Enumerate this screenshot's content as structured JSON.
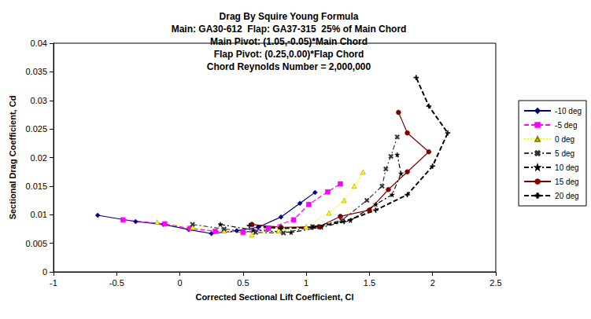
{
  "chart_data": {
    "type": "line",
    "title": "Drag By Squire Young Formula",
    "subtitle": [
      "Main: GA30-612  Flap: GA37-315  25% of Main Chord",
      "Main Pivot: (1.05,-0.05)*Main Chord",
      "Flap Pivot: (0.25,0.00)*Flap Chord",
      "Chord Reynolds Number = 2,000,000"
    ],
    "x_label": "Corrected Sectional Lift Coefficient, Cl",
    "y_label": "Sectional Drag Coefficient, Cd",
    "xlim": [
      -1,
      2.5
    ],
    "xticks": [
      -1,
      -0.5,
      0,
      0.5,
      1,
      1.5,
      2,
      2.5
    ],
    "ylim": [
      0,
      0.04
    ],
    "yticks": [
      0,
      0.005,
      0.01,
      0.015,
      0.02,
      0.025,
      0.03,
      0.035,
      0.04
    ],
    "grid": false,
    "legend": "right",
    "series": [
      {
        "name": "-10 deg",
        "color": "#000080",
        "marker": "diamond",
        "line_style": "solid",
        "x": [
          -0.65,
          -0.35,
          -0.13,
          0.07,
          0.25,
          0.45,
          0.62,
          0.8,
          0.95,
          1.07
        ],
        "values": [
          0.0099,
          0.0088,
          0.0083,
          0.0074,
          0.0067,
          0.0072,
          0.0078,
          0.0096,
          0.012,
          0.0139
        ]
      },
      {
        "name": "-5 deg",
        "color": "#FF00FF",
        "marker": "square",
        "line_style": "dashed",
        "x": [
          -0.45,
          -0.12,
          0.08,
          0.28,
          0.5,
          0.7,
          0.9,
          1.02,
          1.17,
          1.27
        ],
        "values": [
          0.0091,
          0.0084,
          0.0076,
          0.0071,
          0.0069,
          0.0076,
          0.0091,
          0.0118,
          0.014,
          0.0154
        ]
      },
      {
        "name": "0 deg",
        "color": "#FFFF00",
        "marker": "triangle",
        "line_style": "dotted",
        "x": [
          -0.18,
          0.1,
          0.35,
          0.57,
          0.78,
          1.0,
          1.18,
          1.3,
          1.38,
          1.45
        ],
        "values": [
          0.0087,
          0.0078,
          0.0072,
          0.0065,
          0.0072,
          0.0079,
          0.0103,
          0.0125,
          0.015,
          0.0175
        ]
      },
      {
        "name": "5 deg",
        "color": "#333333",
        "marker": "x",
        "line_style": "dashdot",
        "x": [
          0.1,
          0.35,
          0.6,
          0.82,
          1.05,
          1.28,
          1.48,
          1.6,
          1.63,
          1.67,
          1.72
        ],
        "values": [
          0.0083,
          0.0075,
          0.0069,
          0.0068,
          0.0079,
          0.009,
          0.0125,
          0.015,
          0.018,
          0.0202,
          0.0236
        ]
      },
      {
        "name": "10 deg",
        "color": "#000000",
        "marker": "star",
        "line_style": "dashdot",
        "x": [
          0.32,
          0.58,
          0.88,
          1.12,
          1.35,
          1.55,
          1.68,
          1.75,
          1.72
        ],
        "values": [
          0.0083,
          0.0073,
          0.0069,
          0.0078,
          0.009,
          0.0118,
          0.0135,
          0.0172,
          0.0205
        ]
      },
      {
        "name": "15 deg",
        "color": "#800000",
        "marker": "circle",
        "line_style": "solid",
        "x": [
          0.57,
          0.8,
          1.1,
          1.27,
          1.5,
          1.65,
          1.8,
          1.97,
          1.8,
          1.73
        ],
        "values": [
          0.0083,
          0.0078,
          0.0079,
          0.0097,
          0.0108,
          0.0144,
          0.0175,
          0.021,
          0.0243,
          0.0279
        ]
      },
      {
        "name": "20 deg",
        "color": "#000000",
        "marker": "plus",
        "line_style": "dashed",
        "x": [
          0.55,
          0.8,
          1.05,
          1.3,
          1.55,
          1.8,
          2.0,
          2.12,
          1.97,
          1.87
        ],
        "values": [
          0.0081,
          0.0076,
          0.0078,
          0.0088,
          0.0108,
          0.0135,
          0.0185,
          0.0243,
          0.029,
          0.034
        ]
      }
    ]
  }
}
